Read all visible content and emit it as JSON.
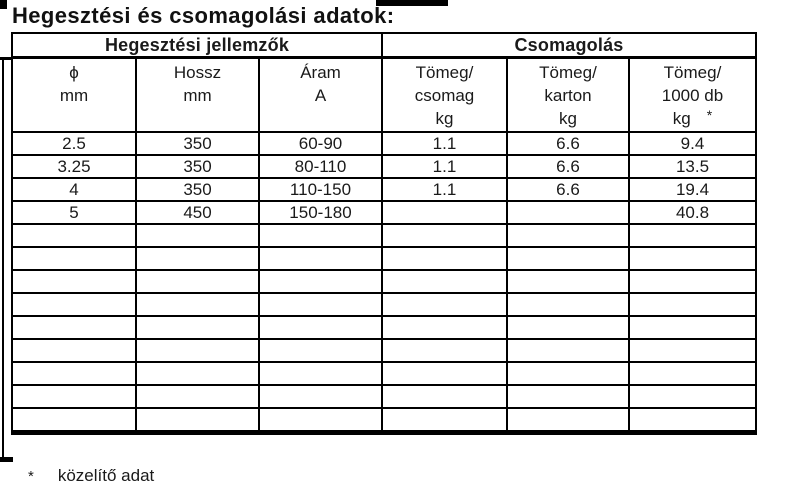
{
  "title": "Hegesztési és csomagolási adatok:",
  "table": {
    "group_headers": [
      {
        "label": "Hegesztési jellemzők"
      },
      {
        "label": "Csomagolás"
      }
    ],
    "column_headers": [
      {
        "line1": "ϕ",
        "line2": "mm"
      },
      {
        "line1": "Hossz",
        "line2": "mm"
      },
      {
        "line1": "Áram",
        "line2": "A"
      },
      {
        "line1": "Tömeg/",
        "line2": "csomag",
        "line3": "kg"
      },
      {
        "line1": "Tömeg/",
        "line2": "karton",
        "line3": "kg"
      },
      {
        "line1": "Tömeg/",
        "line2": "1000 db",
        "line3": "kg",
        "note_mark": "*"
      }
    ],
    "rows": [
      [
        "2.5",
        "350",
        "60-90",
        "1.1",
        "6.6",
        "9.4"
      ],
      [
        "3.25",
        "350",
        "80-110",
        "1.1",
        "6.6",
        "13.5"
      ],
      [
        "4",
        "350",
        "110-150",
        "1.1",
        "6.6",
        "19.4"
      ],
      [
        "5",
        "450",
        "150-180",
        "",
        "",
        "40.8"
      ],
      [
        "",
        "",
        "",
        "",
        "",
        ""
      ],
      [
        "",
        "",
        "",
        "",
        "",
        ""
      ],
      [
        "",
        "",
        "",
        "",
        "",
        ""
      ],
      [
        "",
        "",
        "",
        "",
        "",
        ""
      ],
      [
        "",
        "",
        "",
        "",
        "",
        ""
      ],
      [
        "",
        "",
        "",
        "",
        "",
        ""
      ],
      [
        "",
        "",
        "",
        "",
        "",
        ""
      ],
      [
        "",
        "",
        "",
        "",
        "",
        ""
      ],
      [
        "",
        "",
        "",
        "",
        "",
        ""
      ]
    ]
  },
  "footnote": {
    "mark": "*",
    "text": "közelítő adat"
  }
}
